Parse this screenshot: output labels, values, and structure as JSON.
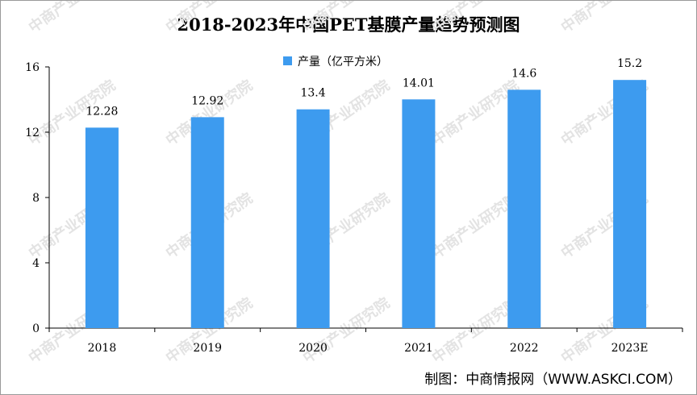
{
  "chart_data": {
    "type": "bar",
    "title": "2018-2023年中国PET基膜产量趋势预测图",
    "categories": [
      "2018",
      "2019",
      "2020",
      "2021",
      "2022",
      "2023E"
    ],
    "series": [
      {
        "name": "产量（亿平方米）",
        "values": [
          12.28,
          12.92,
          13.4,
          14.01,
          14.6,
          15.2
        ],
        "color": "#3d9bef"
      }
    ],
    "value_labels": [
      "12.28",
      "12.92",
      "13.4",
      "14.01",
      "14.6",
      "15.2"
    ],
    "yticks": [
      0,
      4,
      8,
      12,
      16
    ],
    "ylim": [
      0,
      16
    ],
    "grid": false,
    "legend_position": "top-center"
  },
  "credit": "制图：中商情报网（WWW.ASKCI.COM）",
  "watermark": "中商产业研究院"
}
